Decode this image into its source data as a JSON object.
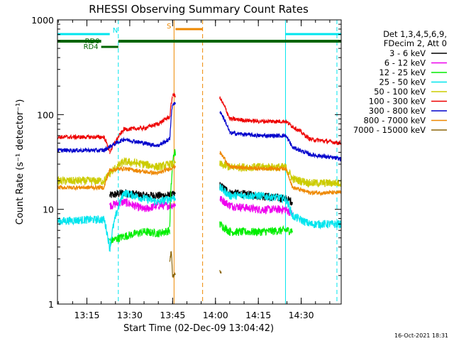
{
  "chart_data": {
    "type": "line",
    "title": "RHESSI Observing Summary Count Rates",
    "xlabel": "Start Time (02-Dec-09 13:04:42)",
    "ylabel": "Count Rate (s⁻¹ detector⁻¹)",
    "y_scale": "log",
    "ylim": [
      1,
      1000
    ],
    "xlim": [
      "13:04:42",
      "14:44:00"
    ],
    "x_ticks": [
      "13:15",
      "13:30",
      "13:45",
      "14:00",
      "14:15",
      "14:30"
    ],
    "y_ticks": [
      "1",
      "10",
      "100",
      "1000"
    ],
    "legend_header": [
      "Det 1,3,4,5,6,9,",
      "FDecim 2, Att 0"
    ],
    "legend_placement": "right",
    "grid": false,
    "footer": "16-Oct-2021 18:31",
    "annotations": {
      "attenuator_state": [
        {
          "label": "N",
          "color": "#00e5ee",
          "intervals": [
            [
              "13:04:42",
              "13:23:00"
            ],
            [
              "14:24:30",
              "14:44:00"
            ]
          ]
        },
        {
          "label": "S",
          "color": "#ee8800",
          "intervals": [
            [
              "13:46:00",
              "13:55:30"
            ]
          ]
        },
        {
          "label": "RD0",
          "color": "#006400",
          "intervals": [
            [
              "13:04:42",
              "13:20:00"
            ],
            [
              "13:26:00",
              "14:44:00"
            ]
          ]
        },
        {
          "label": "RD4",
          "color": "#006400",
          "intervals": [
            [
              "13:20:00",
              "13:26:00"
            ]
          ]
        }
      ],
      "vlines": [
        {
          "color": "#00e5ee",
          "style": "dashed",
          "x": "13:26:00"
        },
        {
          "color": "#00e5ee",
          "style": "dashed",
          "x": "14:42:30"
        },
        {
          "color": "#00e5ee",
          "style": "solid",
          "x": "14:24:30"
        },
        {
          "color": "#ee8800",
          "style": "solid",
          "x": "13:45:30"
        },
        {
          "color": "#ee8800",
          "style": "dashed",
          "x": "13:55:30"
        }
      ]
    },
    "data_gap": [
      "13:46:00",
      "14:01:30"
    ],
    "series": [
      {
        "name": "3 - 6 keV",
        "color": "#000000",
        "x": [
          "13:04:42",
          "13:20:00",
          "13:23:00",
          "13:28:00",
          "13:35:00",
          "13:40:00",
          "13:44:00",
          "14:01:30",
          "14:05:00",
          "14:15:00",
          "14:24:30",
          "14:27:00"
        ],
        "values": [
          null,
          null,
          14,
          15,
          14,
          14,
          14,
          18,
          15,
          14,
          13,
          12
        ]
      },
      {
        "name": "6 - 12 keV",
        "color": "#ee00ee",
        "x": [
          "13:04:42",
          "13:23:00",
          "13:28:00",
          "13:35:00",
          "13:40:00",
          "13:44:00",
          "14:01:30",
          "14:05:00",
          "14:15:00",
          "14:24:30",
          "14:27:00"
        ],
        "values": [
          null,
          11,
          12,
          10,
          11,
          11,
          13,
          11,
          10,
          10,
          9
        ]
      },
      {
        "name": "12 - 25 keV",
        "color": "#00ee00",
        "x": [
          "13:04:42",
          "13:23:00",
          "13:28:00",
          "13:35:00",
          "13:40:00",
          "13:44:00",
          "13:45:30",
          "14:01:30",
          "14:05:00",
          "14:15:00",
          "14:24:30",
          "14:27:00"
        ],
        "values": [
          null,
          4.6,
          5.2,
          5.8,
          5.6,
          6.0,
          40,
          7.0,
          5.8,
          5.8,
          6.0,
          null
        ]
      },
      {
        "name": "25 - 50 keV",
        "color": "#00e5ee",
        "x": [
          "13:04:42",
          "13:15:00",
          "13:21:00",
          "13:23:00",
          "13:28:00",
          "13:35:00",
          "13:40:00",
          "13:44:00",
          "14:01:30",
          "14:05:00",
          "14:15:00",
          "14:24:30",
          "14:27:00",
          "14:33:00",
          "14:44:00"
        ],
        "values": [
          7.5,
          7.8,
          7.8,
          3.8,
          15,
          13,
          12,
          13,
          17,
          14,
          14,
          13,
          8.5,
          7.0,
          7.0
        ]
      },
      {
        "name": "50 - 100 keV",
        "color": "#cccc00",
        "x": [
          "13:04:42",
          "13:15:00",
          "13:21:00",
          "13:23:00",
          "13:28:00",
          "13:35:00",
          "13:40:00",
          "13:44:00",
          "14:01:30",
          "14:05:00",
          "14:15:00",
          "14:24:30",
          "14:27:00",
          "14:33:00",
          "14:44:00"
        ],
        "values": [
          20,
          20,
          20,
          24,
          32,
          30,
          28,
          30,
          30,
          28,
          28,
          28,
          21,
          19,
          19
        ]
      },
      {
        "name": "100 - 300 keV",
        "color": "#ee0000",
        "x": [
          "13:04:42",
          "13:15:00",
          "13:21:00",
          "13:23:00",
          "13:28:00",
          "13:35:00",
          "13:40:00",
          "13:44:00",
          "13:45:00",
          "14:01:30",
          "14:05:00",
          "14:15:00",
          "14:24:30",
          "14:27:00",
          "14:33:00",
          "14:44:00"
        ],
        "values": [
          58,
          58,
          58,
          40,
          70,
          72,
          80,
          95,
          160,
          150,
          90,
          85,
          85,
          75,
          55,
          50
        ]
      },
      {
        "name": "300 - 800 keV",
        "color": "#0000cc",
        "x": [
          "13:04:42",
          "13:15:00",
          "13:21:00",
          "13:23:00",
          "13:28:00",
          "13:35:00",
          "13:40:00",
          "13:44:00",
          "13:45:00",
          "14:01:30",
          "14:05:00",
          "14:15:00",
          "14:24:30",
          "14:27:00",
          "14:33:00",
          "14:44:00"
        ],
        "values": [
          42,
          42,
          42,
          46,
          55,
          50,
          47,
          55,
          130,
          110,
          64,
          60,
          60,
          45,
          38,
          34
        ]
      },
      {
        "name": "800 - 7000 keV",
        "color": "#ee8800",
        "x": [
          "13:04:42",
          "13:15:00",
          "13:21:00",
          "13:23:00",
          "13:28:00",
          "13:35:00",
          "13:40:00",
          "13:44:00",
          "14:01:30",
          "14:05:00",
          "14:15:00",
          "14:24:30",
          "14:27:00",
          "14:33:00",
          "14:44:00"
        ],
        "values": [
          17,
          17,
          17,
          26,
          27,
          25,
          24,
          27,
          40,
          28,
          27,
          27,
          17,
          15,
          15
        ]
      },
      {
        "name": "7000 - 15000 keV",
        "color": "#8b6508",
        "x": [
          "13:04:42",
          "13:44:00",
          "13:44:30",
          "13:45:00",
          "14:01:30",
          "14:02:00"
        ],
        "values": [
          null,
          2.8,
          3.6,
          2.0,
          2.2,
          null
        ]
      }
    ]
  }
}
